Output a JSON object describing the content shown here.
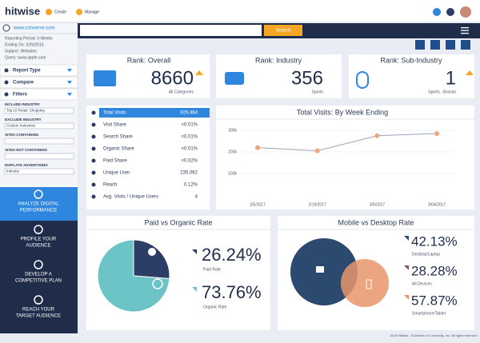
{
  "header": {
    "logo": "hitwise",
    "nav": [
      "Create",
      "Manage"
    ]
  },
  "sidebar": {
    "site": "www.converse.com",
    "info": [
      "Reporting Period: 4 Weeks",
      "Ending On: 3/26/2016",
      "Subject: Websites",
      "Query: www.apple.com"
    ],
    "sections": [
      "Report Type",
      "Compare",
      "Filters"
    ],
    "filters": [
      {
        "label": "INCLUDE INDUSTRY",
        "value": "Top 10 Retail: Shopping"
      },
      {
        "label": "EXCLUDE INDUSTRY",
        "value": "Custom Industries"
      },
      {
        "label": "SITES CONTAINING"
      },
      {
        "label": "SITES NOT CONTAINING"
      },
      {
        "label": "DISPLATE ADVERTISING",
        "value": "Industry"
      }
    ],
    "nav": [
      [
        "ANALYZE DIGITAL",
        "PERFORMANCE"
      ],
      [
        "PROFILE YOUR",
        "AUDIENCE"
      ],
      [
        "DEVELOP A",
        "COMPETITIVE PLAN"
      ],
      [
        "REACH YOUR",
        "TARGET AUDIENCE"
      ]
    ]
  },
  "search": {
    "button": "Search"
  },
  "ranks": [
    {
      "title": "Rank: Overall",
      "value": 8660,
      "sub": "All Categories"
    },
    {
      "title": "Rank: Industry",
      "value": 356,
      "sub": "Sports"
    },
    {
      "title": "Rank: Sub-Industry",
      "value": 1,
      "sub": "Sports - Brands"
    }
  ],
  "metrics": {
    "rows": [
      [
        "Total Visits",
        "929,464"
      ],
      [
        "Visit Share",
        "<0.01%"
      ],
      [
        "Search Share",
        "<0.01%"
      ],
      [
        "Organic Share",
        "<0.01%"
      ],
      [
        "Paid Share",
        "<0.02%"
      ],
      [
        "Unique User",
        "235,062"
      ],
      [
        "Reach",
        "0.12%"
      ],
      [
        "Avg. Visits / Unique Users",
        "4"
      ]
    ]
  },
  "visits_chart": {
    "type": "line",
    "title": "Total Visits: By Week Ending",
    "categories": [
      "2/5/2017",
      "2/19/2017",
      "3/5/2017",
      "3/04/2017"
    ],
    "values": [
      220000,
      205000,
      275000,
      285000
    ],
    "color": "#f0a47a",
    "ylim": [
      0,
      300000
    ],
    "yticks": [
      {
        "value": 100000,
        "label": "100k"
      },
      {
        "value": 200000,
        "label": "200k"
      },
      {
        "value": 300000,
        "label": "300k"
      }
    ],
    "grid": true
  },
  "paid_chart": {
    "type": "pie",
    "title": "Paid vs Organic Rate",
    "categories": [
      "Paid Rate",
      "Organic Rate"
    ],
    "values": [
      26.24,
      73.76
    ],
    "value_labels": [
      "26.24%",
      "73.76%"
    ],
    "colors": [
      "#2c3e66",
      "#6cc4c7"
    ]
  },
  "device_chart": {
    "type": "venn",
    "title": "Mobile vs Desktop Rate",
    "categories": [
      "Desktop/Laptop",
      "All Devices",
      "Smartphone/Tablet"
    ],
    "values": [
      42.13,
      28.28,
      57.87
    ],
    "value_labels": [
      "42.13%",
      "28.28%",
      "57.87%"
    ]
  },
  "footer": "2018 Hitwise - A Division of Connexity, Inc. All rights reserved"
}
